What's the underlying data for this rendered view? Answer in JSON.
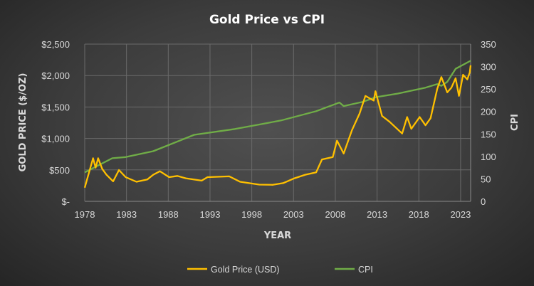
{
  "chart_data": {
    "type": "line",
    "title": "Gold Price vs CPI",
    "xlabel": "YEAR",
    "ylabel": "GOLD PRICE ($/OZ)",
    "y2label": "CPI",
    "xlim": [
      1978,
      2024.2
    ],
    "ylim": [
      0,
      2500
    ],
    "y2lim": [
      0,
      350
    ],
    "x_ticks": [
      "1978",
      "1983",
      "1988",
      "1993",
      "1998",
      "2003",
      "2008",
      "2013",
      "2018",
      "2023"
    ],
    "y_ticks": [
      "$-",
      "$500",
      "$1,000",
      "$1,500",
      "$2,000",
      "$2,500"
    ],
    "y2_ticks": [
      "0",
      "50",
      "100",
      "150",
      "200",
      "250",
      "300",
      "350"
    ],
    "grid": true,
    "legend_position": "bottom",
    "series": [
      {
        "name": "Gold Price (USD)",
        "axis": "left",
        "color": "#ffc000",
        "x": [
          1978.0,
          1979.0,
          1979.3,
          1979.6,
          1980.1,
          1980.6,
          1981.4,
          1982.1,
          1982.9,
          1984.2,
          1985.5,
          1986.2,
          1987.0,
          1988.1,
          1989.1,
          1990.1,
          1992.0,
          1992.7,
          1995.3,
          1996.6,
          1998.9,
          2000.5,
          2001.8,
          2003.1,
          2004.4,
          2005.7,
          2006.4,
          2007.7,
          2008.2,
          2009.0,
          2010.0,
          2010.9,
          2011.6,
          2012.1,
          2012.6,
          2012.8,
          2013.6,
          2014.5,
          2016.0,
          2016.6,
          2017.1,
          2018.1,
          2018.8,
          2019.4,
          2020.2,
          2020.7,
          2021.4,
          2021.9,
          2022.4,
          2022.8,
          2023.3,
          2023.8,
          2024.1,
          2024.2
        ],
        "y": [
          217,
          685,
          535,
          685,
          516,
          423,
          318,
          498,
          385,
          311,
          348,
          423,
          479,
          385,
          404,
          367,
          329,
          385,
          397,
          311,
          266,
          262,
          292,
          367,
          423,
          460,
          666,
          704,
          966,
          760,
          1134,
          1396,
          1677,
          1639,
          1602,
          1751,
          1358,
          1265,
          1078,
          1340,
          1153,
          1340,
          1209,
          1321,
          1789,
          1976,
          1733,
          1808,
          1957,
          1677,
          2013,
          1939,
          2051,
          2163
        ]
      },
      {
        "name": "CPI",
        "axis": "right",
        "color": "#70ad47",
        "x": [
          1978.0,
          1981.3,
          1982.9,
          1986.2,
          1991.1,
          1996.0,
          1999.2,
          2001.5,
          2005.7,
          2008.5,
          2009.0,
          2011.3,
          2012.9,
          2015.5,
          2018.8,
          2020.2,
          2020.7,
          2021.4,
          2022.4,
          2024.2
        ],
        "y": [
          64.4,
          96,
          98.5,
          111.6,
          148,
          161,
          172,
          180,
          200.7,
          220,
          212,
          221.6,
          232,
          240,
          253,
          261,
          257,
          266,
          295,
          313
        ]
      }
    ]
  }
}
